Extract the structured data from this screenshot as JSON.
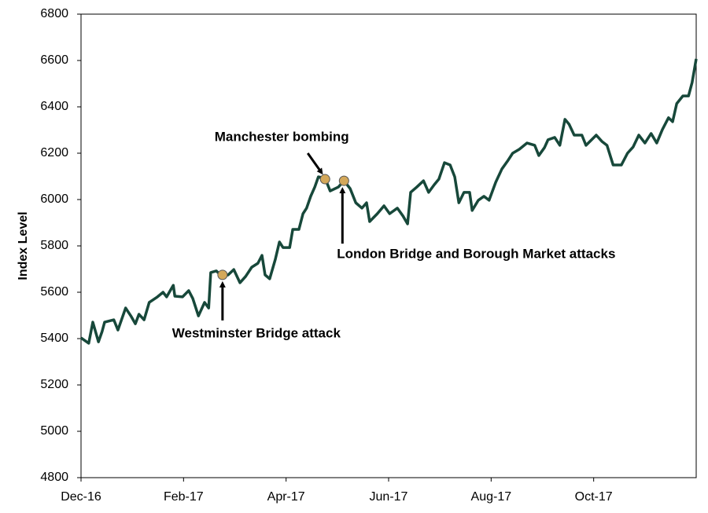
{
  "chart_data": {
    "type": "line",
    "y_label": "Index Level",
    "x": [
      0,
      0.15,
      0.23,
      0.34,
      0.41,
      0.46,
      0.64,
      0.72,
      0.87,
      0.98,
      1.06,
      1.13,
      1.23,
      1.33,
      1.49,
      1.6,
      1.67,
      1.8,
      1.83,
      1.98,
      2.1,
      2.18,
      2.29,
      2.41,
      2.49,
      2.53,
      2.64,
      2.75,
      2.87,
      2.98,
      3.1,
      3.21,
      3.33,
      3.45,
      3.53,
      3.59,
      3.68,
      3.79,
      3.87,
      3.94,
      4.07,
      4.13,
      4.25,
      4.33,
      4.4,
      4.48,
      4.56,
      4.63,
      4.76,
      4.86,
      5.02,
      5.13,
      5.25,
      5.36,
      5.48,
      5.57,
      5.63,
      5.78,
      5.91,
      6.02,
      6.17,
      6.28,
      6.37,
      6.43,
      6.55,
      6.68,
      6.78,
      6.89,
      6.98,
      7.09,
      7.2,
      7.29,
      7.37,
      7.47,
      7.58,
      7.63,
      7.75,
      7.86,
      7.96,
      8.09,
      8.21,
      8.32,
      8.42,
      8.55,
      8.7,
      8.85,
      8.93,
      9.04,
      9.11,
      9.24,
      9.34,
      9.44,
      9.52,
      9.62,
      9.77,
      9.85,
      9.96,
      10.05,
      10.16,
      10.26,
      10.38,
      10.54,
      10.66,
      10.77,
      10.88,
      11.0,
      11.12,
      11.23,
      11.34,
      11.46,
      11.54,
      11.62,
      11.74,
      11.85,
      11.92,
      12
    ],
    "series": [
      {
        "color": "#17483a",
        "values": [
          5403,
          5380,
          5471,
          5386,
          5430,
          5471,
          5481,
          5437,
          5532,
          5495,
          5464,
          5505,
          5481,
          5556,
          5580,
          5600,
          5580,
          5630,
          5583,
          5580,
          5607,
          5573,
          5498,
          5556,
          5532,
          5685,
          5692,
          5668,
          5675,
          5698,
          5641,
          5668,
          5708,
          5725,
          5759,
          5675,
          5658,
          5742,
          5817,
          5793,
          5793,
          5871,
          5871,
          5939,
          5963,
          6014,
          6054,
          6098,
          6092,
          6037,
          6054,
          6081,
          6047,
          5986,
          5963,
          5986,
          5905,
          5939,
          5973,
          5939,
          5963,
          5929,
          5895,
          6031,
          6054,
          6081,
          6031,
          6064,
          6088,
          6159,
          6149,
          6098,
          5986,
          6031,
          6031,
          5953,
          5997,
          6014,
          5997,
          6075,
          6132,
          6166,
          6200,
          6217,
          6244,
          6234,
          6190,
          6224,
          6258,
          6268,
          6234,
          6346,
          6325,
          6278,
          6278,
          6234,
          6258,
          6278,
          6251,
          6234,
          6149,
          6149,
          6200,
          6227,
          6278,
          6244,
          6285,
          6244,
          6302,
          6353,
          6336,
          6414,
          6447,
          6447,
          6505,
          6607
        ]
      }
    ],
    "events": [
      {
        "label": "Westminster Bridge attack",
        "x": 2.76,
        "y": 5675
      },
      {
        "label": "Manchester bombing",
        "x": 4.76,
        "y": 6088
      },
      {
        "label": "London Bridge and Borough Market attacks",
        "x": 5.13,
        "y": 6081
      }
    ],
    "marker_color": "#d4a85a",
    "xlim": [
      0,
      12
    ],
    "xticks": [
      {
        "value": 0,
        "label": "Dec-16"
      },
      {
        "value": 2,
        "label": "Feb-17"
      },
      {
        "value": 4,
        "label": "Apr-17"
      },
      {
        "value": 6,
        "label": "Jun-17"
      },
      {
        "value": 8,
        "label": "Aug-17"
      },
      {
        "value": 10,
        "label": "Oct-17"
      }
    ],
    "ylim": [
      4800,
      6800
    ],
    "yticks": [
      4800,
      5000,
      5200,
      5400,
      5600,
      5800,
      6000,
      6200,
      6400,
      6600,
      6800
    ]
  }
}
